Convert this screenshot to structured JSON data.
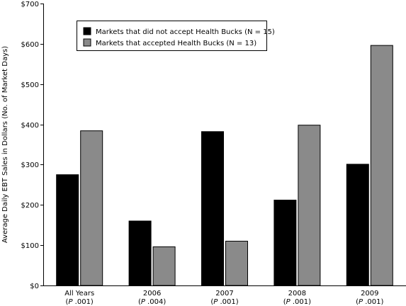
{
  "chart_data": {
    "type": "bar",
    "ylabel": "Average Daily EBT Sales in Dollars  (No. of Market Days)",
    "ylim": [
      0,
      700
    ],
    "yticks": [
      0,
      100,
      200,
      300,
      400,
      500,
      600,
      700
    ],
    "ytick_labels": [
      "$0",
      "$100",
      "$200",
      "$300",
      "$400",
      "$500",
      "$600",
      "$700"
    ],
    "categories": [
      {
        "label": "All Years",
        "p_prefix": "P",
        "p_value": ".001"
      },
      {
        "label": "2006",
        "p_prefix": "P",
        "p_value": ".004"
      },
      {
        "label": "2007",
        "p_prefix": "P",
        "p_value": ".001"
      },
      {
        "label": "2008",
        "p_prefix": "P",
        "p_value": ".001"
      },
      {
        "label": "2009",
        "p_prefix": "P",
        "p_value": ".001"
      }
    ],
    "series": [
      {
        "name": "Markets that did not accept Health Bucks (N = 15)",
        "color": "#000000",
        "values": [
          275,
          160,
          382,
          212,
          301
        ]
      },
      {
        "name": "Markets that accepted Health Bucks (N = 13)",
        "color": "#8a8a8a",
        "values": [
          384,
          96,
          110,
          398,
          596
        ]
      }
    ],
    "grid": false,
    "legend_position": "top-left"
  }
}
